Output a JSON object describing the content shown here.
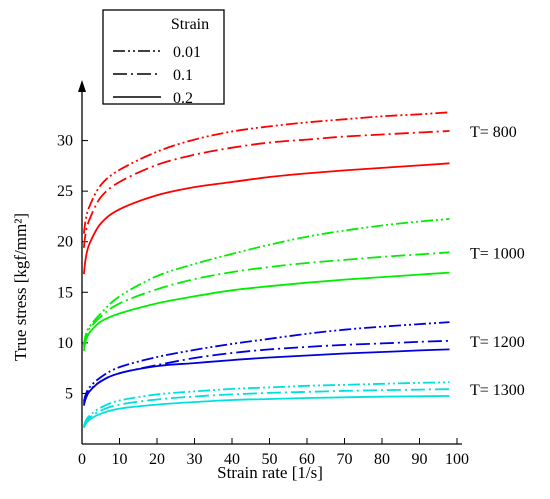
{
  "chart_data": {
    "type": "line",
    "xlabel": "Strain rate [1/s]",
    "ylabel": "True stress [kgf/mm²]",
    "xlim": [
      0,
      100
    ],
    "ylim": [
      0,
      35
    ],
    "xticks": [
      0,
      10,
      20,
      30,
      40,
      50,
      60,
      70,
      80,
      90,
      100
    ],
    "yticks": [
      5,
      10,
      15,
      20,
      25,
      30
    ],
    "grid": false,
    "legend": {
      "title": "Strain",
      "placement": "top-left",
      "entries": [
        {
          "label": "0.01",
          "dash": "dash-dot-dot"
        },
        {
          "label": "0.1",
          "dash": "dash-dot"
        },
        {
          "label": "0.2",
          "dash": "solid"
        }
      ]
    },
    "x": [
      0.5,
      1,
      2,
      5,
      10,
      20,
      30,
      40,
      50,
      60,
      70,
      80,
      90,
      98
    ],
    "groups": [
      {
        "label": "T= 800",
        "color": "#ff0000",
        "series": [
          {
            "strain": "0.01",
            "values": [
              20.8,
              22.2,
              23.5,
              25.6,
              27.1,
              28.9,
              30.1,
              30.9,
              31.4,
              31.8,
              32.1,
              32.4,
              32.6,
              32.8
            ]
          },
          {
            "strain": "0.1",
            "values": [
              19.4,
              20.9,
              22.2,
              24.4,
              25.9,
              27.6,
              28.6,
              29.3,
              29.8,
              30.1,
              30.4,
              30.6,
              30.8,
              30.95
            ]
          },
          {
            "strain": "0.2",
            "values": [
              16.8,
              18.4,
              19.8,
              21.8,
              23.2,
              24.6,
              25.4,
              25.9,
              26.4,
              26.75,
              27.05,
              27.3,
              27.55,
              27.75
            ]
          }
        ]
      },
      {
        "label": "T= 1000",
        "color": "#00ee00",
        "series": [
          {
            "strain": "0.01",
            "values": [
              9.8,
              10.8,
              11.6,
              12.9,
              14.6,
              16.6,
              17.8,
              18.8,
              19.7,
              20.5,
              21.1,
              21.6,
              22.0,
              22.25
            ]
          },
          {
            "strain": "0.1",
            "values": [
              9.6,
              10.6,
              11.4,
              12.6,
              13.9,
              15.3,
              16.3,
              17.0,
              17.5,
              17.9,
              18.2,
              18.5,
              18.75,
              18.95
            ]
          },
          {
            "strain": "0.2",
            "values": [
              9.2,
              10.2,
              11.0,
              12.1,
              12.9,
              13.9,
              14.6,
              15.2,
              15.6,
              15.95,
              16.25,
              16.5,
              16.75,
              16.95
            ]
          }
        ]
      },
      {
        "label": "T= 1200",
        "color": "#0000dd",
        "series": [
          {
            "strain": "0.01",
            "values": [
              4.2,
              4.9,
              5.6,
              6.6,
              7.6,
              8.6,
              9.3,
              9.9,
              10.4,
              10.9,
              11.3,
              11.6,
              11.85,
              12.05
            ]
          },
          {
            "strain": "0.1",
            "values": [
              4.0,
              4.6,
              5.3,
              6.2,
              7.0,
              7.8,
              8.5,
              9.0,
              9.35,
              9.6,
              9.8,
              9.95,
              10.1,
              10.2
            ]
          },
          {
            "strain": "0.2",
            "values": [
              3.8,
              4.5,
              5.2,
              6.2,
              7.0,
              7.7,
              8.0,
              8.3,
              8.55,
              8.75,
              8.95,
              9.1,
              9.25,
              9.35
            ]
          }
        ]
      },
      {
        "label": "T= 1300",
        "color": "#00e0e0",
        "series": [
          {
            "strain": "0.01",
            "values": [
              1.8,
              2.3,
              2.8,
              3.6,
              4.3,
              4.9,
              5.2,
              5.45,
              5.6,
              5.75,
              5.85,
              5.95,
              6.05,
              6.1
            ]
          },
          {
            "strain": "0.1",
            "values": [
              1.7,
              2.2,
              2.6,
              3.3,
              3.9,
              4.4,
              4.7,
              4.9,
              5.05,
              5.15,
              5.25,
              5.32,
              5.38,
              5.42
            ]
          },
          {
            "strain": "0.2",
            "values": [
              1.6,
              2.0,
              2.4,
              3.0,
              3.5,
              3.9,
              4.15,
              4.35,
              4.45,
              4.55,
              4.62,
              4.68,
              4.72,
              4.75
            ]
          }
        ]
      }
    ]
  }
}
